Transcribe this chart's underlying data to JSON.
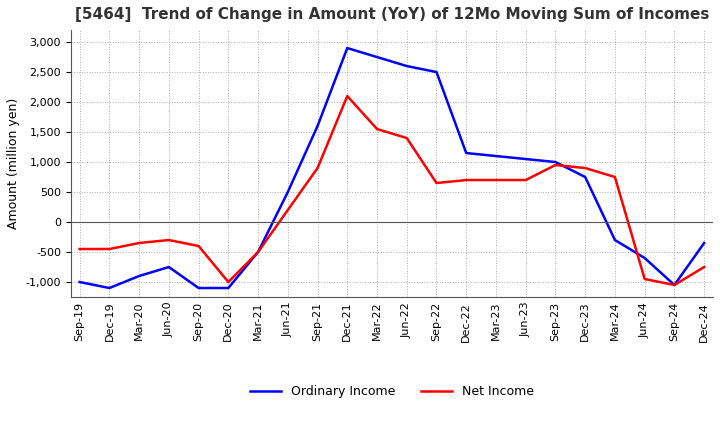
{
  "title": "[5464]  Trend of Change in Amount (YoY) of 12Mo Moving Sum of Incomes",
  "ylabel": "Amount (million yen)",
  "x_labels": [
    "Sep-19",
    "Dec-19",
    "Mar-20",
    "Jun-20",
    "Sep-20",
    "Dec-20",
    "Mar-21",
    "Jun-21",
    "Sep-21",
    "Dec-21",
    "Mar-22",
    "Jun-22",
    "Sep-22",
    "Dec-22",
    "Mar-23",
    "Jun-23",
    "Sep-23",
    "Dec-23",
    "Mar-24",
    "Jun-24",
    "Sep-24",
    "Dec-24"
  ],
  "ordinary_income": [
    -1000,
    -1100,
    -900,
    -750,
    -1100,
    -1100,
    -500,
    500,
    1600,
    2900,
    2750,
    2600,
    2500,
    1150,
    1100,
    1050,
    1000,
    750,
    -300,
    -600,
    -1050,
    -350
  ],
  "net_income": [
    -450,
    -450,
    -350,
    -300,
    -400,
    -1000,
    -500,
    200,
    900,
    2100,
    1550,
    1400,
    650,
    700,
    700,
    700,
    950,
    900,
    750,
    -950,
    -1050,
    -750
  ],
  "ordinary_color": "#0000ff",
  "net_color": "#ff0000",
  "ylim": [
    -1250,
    3200
  ],
  "yticks": [
    -1000,
    -500,
    0,
    500,
    1000,
    1500,
    2000,
    2500,
    3000
  ],
  "background_color": "#ffffff",
  "grid_color": "#aaaaaa",
  "title_fontsize": 11,
  "ylabel_fontsize": 9,
  "tick_fontsize": 8,
  "legend_fontsize": 9,
  "line_width": 1.8
}
